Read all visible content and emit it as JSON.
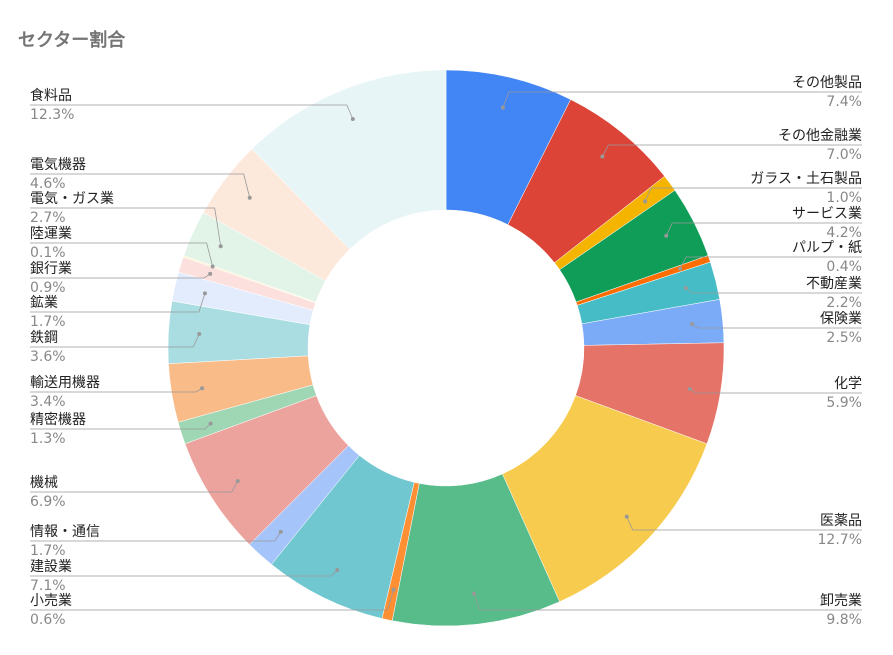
{
  "chart_data": {
    "type": "pie",
    "subtype": "donut",
    "title": "セクター割合",
    "legend": "none",
    "label_color": "#222222",
    "value_color": "#888888",
    "leader_color": "#999999",
    "slices": [
      {
        "label": "その他製品",
        "value": 7.4,
        "value_label": "7.4%",
        "color": "#4285f4"
      },
      {
        "label": "その他金融業",
        "value": 7.0,
        "value_label": "7.0%",
        "color": "#db4437"
      },
      {
        "label": "ガラス・土石製品",
        "value": 1.0,
        "value_label": "1.0%",
        "color": "#f4b400"
      },
      {
        "label": "サービス業",
        "value": 4.2,
        "value_label": "4.2%",
        "color": "#0f9d58"
      },
      {
        "label": "パルプ・紙",
        "value": 0.4,
        "value_label": "0.4%",
        "color": "#ff6d00"
      },
      {
        "label": "不動産業",
        "value": 2.2,
        "value_label": "2.2%",
        "color": "#46bdc6"
      },
      {
        "label": "保険業",
        "value": 2.5,
        "value_label": "2.5%",
        "color": "#7baaf7"
      },
      {
        "label": "化学",
        "value": 5.9,
        "value_label": "5.9%",
        "color": "#e57368"
      },
      {
        "label": "医薬品",
        "value": 12.7,
        "value_label": "12.7%",
        "color": "#f7cb4d"
      },
      {
        "label": "卸売業",
        "value": 9.8,
        "value_label": "9.8%",
        "color": "#57bb8a"
      },
      {
        "label": "小売業",
        "value": 0.6,
        "value_label": "0.6%",
        "color": "#ff8f33"
      },
      {
        "label": "建設業",
        "value": 7.1,
        "value_label": "7.1%",
        "color": "#71c7d0"
      },
      {
        "label": "情報・通信",
        "value": 1.7,
        "value_label": "1.7%",
        "color": "#a5c4f9"
      },
      {
        "label": "機械",
        "value": 6.9,
        "value_label": "6.9%",
        "color": "#eca39d"
      },
      {
        "label": "精密機器",
        "value": 1.3,
        "value_label": "1.3%",
        "color": "#9fd6b3"
      },
      {
        "label": "輸送用機器",
        "value": 3.4,
        "value_label": "3.4%",
        "color": "#f9bb88"
      },
      {
        "label": "鉄鋼",
        "value": 3.6,
        "value_label": "3.6%",
        "color": "#a9dde2"
      },
      {
        "label": "鉱業",
        "value": 1.7,
        "value_label": "1.7%",
        "color": "#e3ecfd"
      },
      {
        "label": "銀行業",
        "value": 0.9,
        "value_label": "0.9%",
        "color": "#fbe0de"
      },
      {
        "label": "陸運業",
        "value": 0.1,
        "value_label": "0.1%",
        "color": "#fdf3cf"
      },
      {
        "label": "電気・ガス業",
        "value": 2.7,
        "value_label": "2.7%",
        "color": "#e2f3e8"
      },
      {
        "label": "電気機器",
        "value": 4.6,
        "value_label": "4.6%",
        "color": "#fde8dc"
      },
      {
        "label": "食料品",
        "value": 12.3,
        "value_label": "12.3%",
        "color": "#e8f5f6"
      }
    ]
  }
}
